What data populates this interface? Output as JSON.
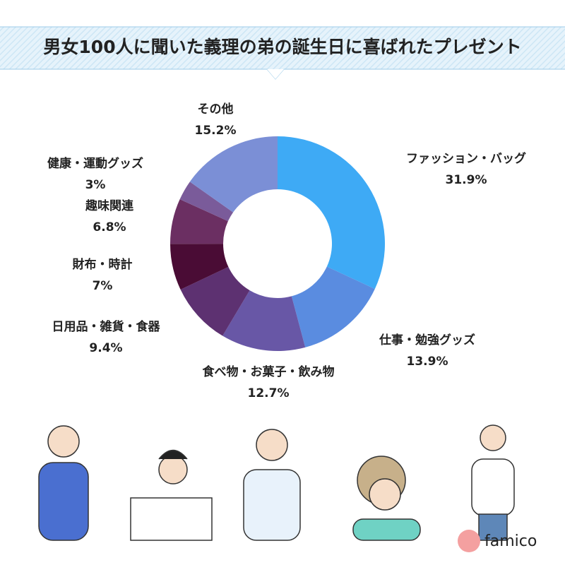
{
  "chart_data": {
    "type": "donut",
    "title": "男女100人に聞いた義理の弟の誕生日に喜ばれたプレゼント",
    "categories": [
      "ファッション・バッグ",
      "仕事・勉強グッズ",
      "食べ物・お菓子・飲み物",
      "日用品・雑貨・食器",
      "財布・時計",
      "趣味関連",
      "健康・運動グッズ",
      "その他"
    ],
    "values": [
      31.9,
      13.9,
      12.7,
      9.4,
      7,
      6.8,
      3,
      15.2
    ],
    "value_labels": [
      "31.9%",
      "13.9%",
      "12.7%",
      "9.4%",
      "7%",
      "6.8%",
      "3%",
      "15.2%"
    ],
    "colors": [
      "#3eaaf5",
      "#5a8ce0",
      "#6857a6",
      "#5d3171",
      "#4a0c35",
      "#6b2f62",
      "#7a5b9a",
      "#7b8fd6"
    ],
    "brand": "famico"
  }
}
